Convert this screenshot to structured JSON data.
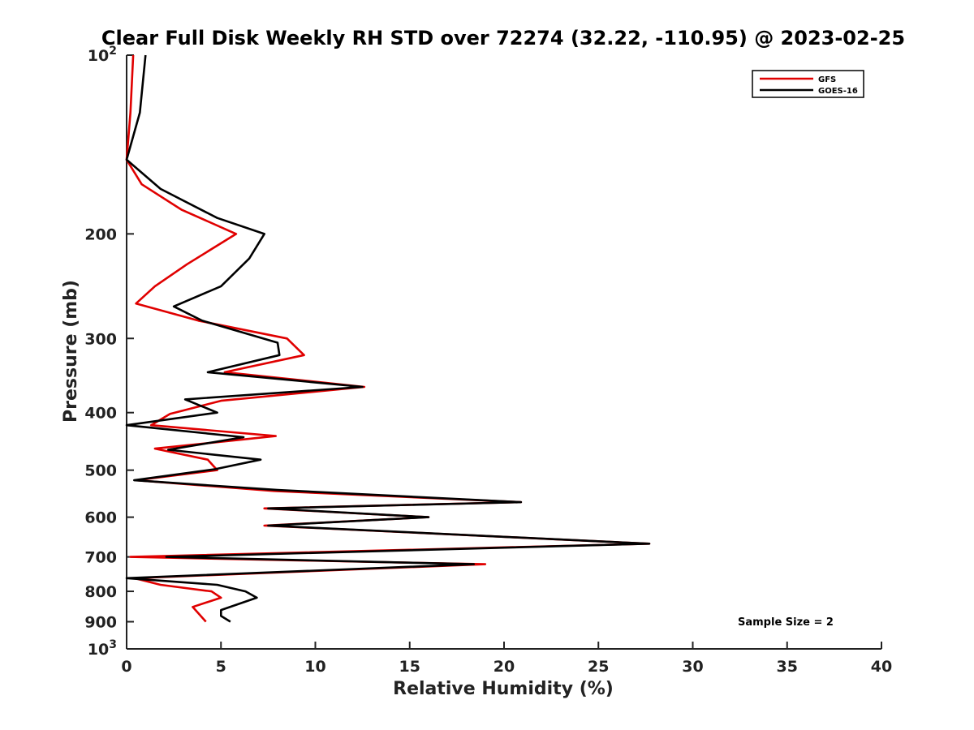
{
  "chart_data": {
    "type": "line",
    "title": "Clear Full Disk Weekly RH STD over 72274 (32.22, -110.95) @ 2023-02-25",
    "xlabel": "Relative Humidity (%)",
    "ylabel": "Pressure (mb)",
    "xlim": [
      0,
      40
    ],
    "ylim": [
      100,
      1000
    ],
    "y_scale": "log",
    "y_reversed": true,
    "grid": false,
    "legend_position": "top-right",
    "x_ticks": [
      "0",
      "5",
      "10",
      "15",
      "20",
      "25",
      "30",
      "35",
      "40"
    ],
    "y_ticks": [
      {
        "value": 100,
        "base": "10",
        "exp": "2"
      },
      {
        "value": 200,
        "label": "200"
      },
      {
        "value": 300,
        "label": "300"
      },
      {
        "value": 400,
        "label": "400"
      },
      {
        "value": 500,
        "label": "500"
      },
      {
        "value": 600,
        "label": "600"
      },
      {
        "value": 700,
        "label": "700"
      },
      {
        "value": 800,
        "label": "800"
      },
      {
        "value": 900,
        "label": "900"
      },
      {
        "value": 1000,
        "base": "10",
        "exp": "3"
      }
    ],
    "series": [
      {
        "name": "GFS",
        "color": "#e00000",
        "points": [
          [
            0.35,
            100
          ],
          [
            0.2,
            125
          ],
          [
            0.0,
            150
          ],
          [
            0.8,
            165
          ],
          [
            2.9,
            182
          ],
          [
            5.8,
            200
          ],
          [
            3.2,
            225
          ],
          [
            1.5,
            245
          ],
          [
            0.5,
            262
          ],
          [
            3.8,
            280
          ],
          [
            8.5,
            300
          ],
          [
            9.4,
            320
          ],
          [
            5.2,
            342
          ],
          [
            12.6,
            362
          ],
          [
            5.0,
            382
          ],
          [
            2.3,
            402
          ],
          [
            1.3,
            420
          ],
          [
            7.9,
            438
          ],
          [
            1.5,
            460
          ],
          [
            4.3,
            480
          ],
          [
            4.8,
            500
          ],
          [
            0.5,
            520
          ],
          [
            7.8,
            542
          ],
          [
            20.9,
            566
          ],
          [
            7.3,
            580
          ],
          [
            16.0,
            600
          ],
          [
            7.3,
            620
          ],
          [
            27.7,
            665
          ],
          [
            0.2,
            700
          ],
          [
            19.0,
            720
          ],
          [
            0.4,
            760
          ],
          [
            1.8,
            780
          ],
          [
            4.5,
            800
          ],
          [
            5.0,
            820
          ],
          [
            3.5,
            850
          ],
          [
            4.2,
            900
          ]
        ]
      },
      {
        "name": "GOES-16",
        "color": "#000000",
        "points": [
          [
            1.0,
            100
          ],
          [
            0.7,
            125
          ],
          [
            0.0,
            150
          ],
          [
            1.8,
            168
          ],
          [
            4.8,
            188
          ],
          [
            7.3,
            200
          ],
          [
            6.5,
            220
          ],
          [
            5.0,
            245
          ],
          [
            2.5,
            265
          ],
          [
            4.0,
            280
          ],
          [
            8.0,
            305
          ],
          [
            8.1,
            320
          ],
          [
            4.3,
            342
          ],
          [
            12.5,
            362
          ],
          [
            3.1,
            380
          ],
          [
            4.8,
            400
          ],
          [
            0.0,
            420
          ],
          [
            6.2,
            440
          ],
          [
            2.2,
            462
          ],
          [
            7.1,
            480
          ],
          [
            4.7,
            498
          ],
          [
            0.4,
            520
          ],
          [
            8.0,
            540
          ],
          [
            20.9,
            566
          ],
          [
            7.5,
            580
          ],
          [
            16.0,
            600
          ],
          [
            7.5,
            620
          ],
          [
            27.7,
            665
          ],
          [
            2.1,
            700
          ],
          [
            18.4,
            720
          ],
          [
            0.0,
            760
          ],
          [
            4.8,
            780
          ],
          [
            6.3,
            800
          ],
          [
            6.9,
            820
          ],
          [
            5.0,
            860
          ],
          [
            5.0,
            880
          ],
          [
            5.5,
            900
          ]
        ]
      }
    ],
    "annotation": "Sample Size = 2"
  }
}
